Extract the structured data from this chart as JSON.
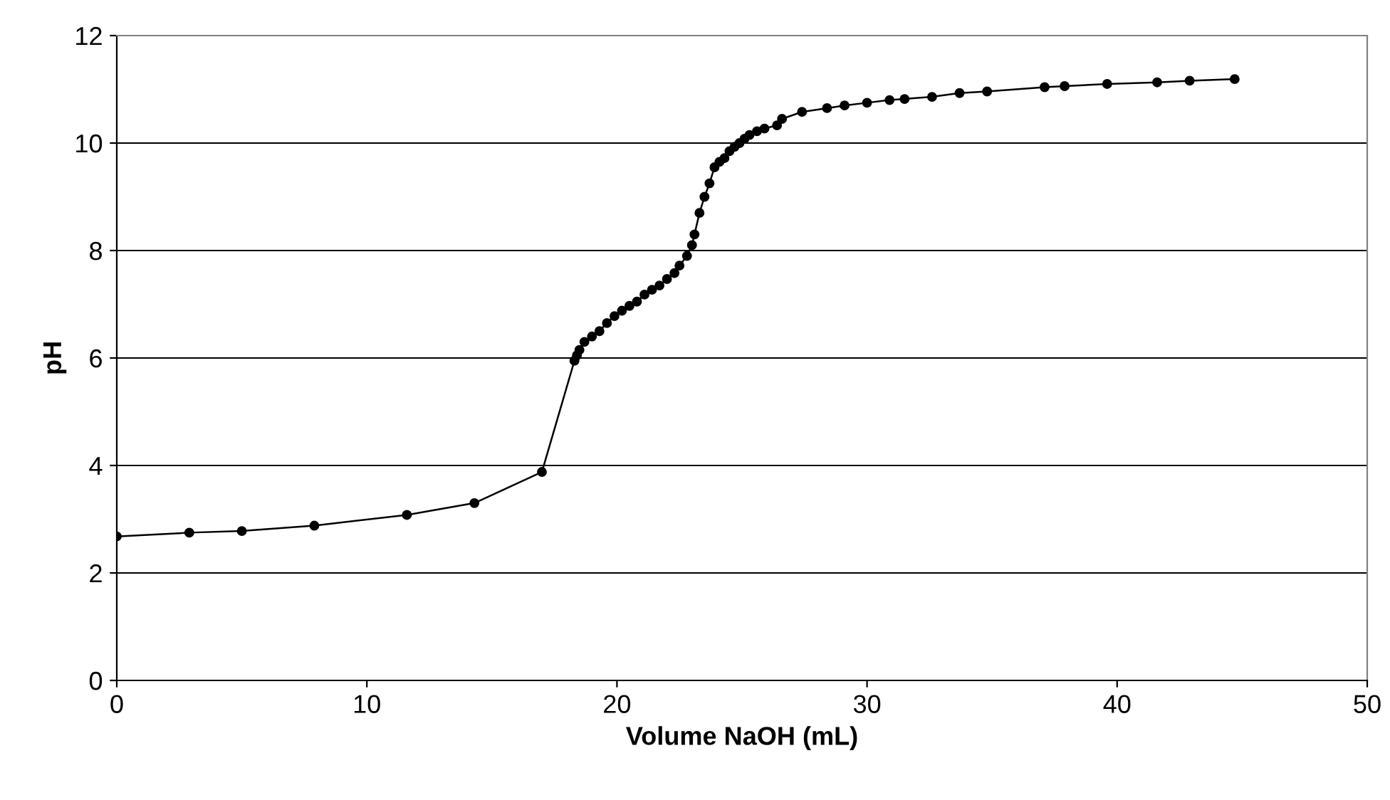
{
  "chart_data": {
    "type": "line",
    "xlabel": "Volume NaOH (mL)",
    "ylabel": "pH",
    "x": [
      0,
      2.9,
      5,
      7.9,
      11.6,
      14.3,
      17,
      18.3,
      18.4,
      18.5,
      18.7,
      19,
      19.3,
      19.6,
      19.9,
      20.2,
      20.5,
      20.8,
      21.1,
      21.4,
      21.7,
      22,
      22.3,
      22.5,
      22.8,
      23,
      23.1,
      23.3,
      23.5,
      23.7,
      23.9,
      24.1,
      24.3,
      24.5,
      24.7,
      24.9,
      25.1,
      25.3,
      25.6,
      25.9,
      26.4,
      26.6,
      27.4,
      28.4,
      29.1,
      30,
      30.9,
      31.5,
      32.6,
      33.7,
      34.8,
      37.1,
      37.9,
      39.6,
      41.6,
      42.9,
      44.7
    ],
    "series": [
      {
        "color": "#000000",
        "values": [
          2.68,
          2.75,
          2.78,
          2.88,
          3.08,
          3.3,
          3.88,
          5.95,
          6.05,
          6.15,
          6.3,
          6.4,
          6.5,
          6.65,
          6.78,
          6.88,
          6.97,
          7.05,
          7.18,
          7.27,
          7.35,
          7.47,
          7.58,
          7.72,
          7.9,
          8.1,
          8.3,
          8.7,
          9.0,
          9.25,
          9.55,
          9.65,
          9.72,
          9.85,
          9.93,
          10.0,
          10.08,
          10.15,
          10.22,
          10.27,
          10.33,
          10.45,
          10.58,
          10.65,
          10.7,
          10.75,
          10.8,
          10.82,
          10.86,
          10.93,
          10.96,
          11.04,
          11.06,
          11.1,
          11.13,
          11.16,
          11.19
        ]
      }
    ],
    "xlim": [
      0,
      50
    ],
    "xticks": [
      0,
      10,
      20,
      30,
      40,
      50
    ],
    "ylim": [
      0,
      12
    ],
    "yticks": [
      0,
      2,
      4,
      6,
      8,
      10,
      12
    ],
    "grid": "y",
    "marker": "circle",
    "line_style": "solid"
  }
}
